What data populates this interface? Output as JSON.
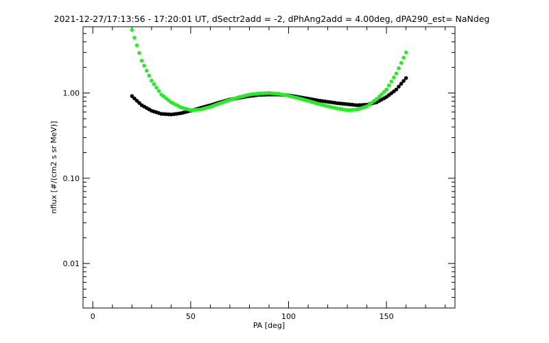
{
  "chart_data": {
    "type": "scatter",
    "title": "2021-12-27/17:13:56 - 17:20:01 UT, dSectr2add = -2, dPhAng2add = 4.00deg, dPA290_est=   NaNdeg",
    "xlabel": "PA [deg]",
    "ylabel": "nflux [#/(cm2 s sr MeV)]",
    "xlim": [
      -5,
      185
    ],
    "ylim": [
      0.003,
      6.0
    ],
    "yscale": "log",
    "grid": false,
    "x_ticks": [
      {
        "value": 0,
        "label": "0"
      },
      {
        "value": 50,
        "label": "50"
      },
      {
        "value": 100,
        "label": "100"
      },
      {
        "value": 150,
        "label": "150"
      }
    ],
    "y_ticks": [
      {
        "value": 0.01,
        "label": "0.01"
      },
      {
        "value": 0.1,
        "label": "0.10"
      },
      {
        "value": 1.0,
        "label": "1.00"
      }
    ],
    "series": [
      {
        "color": "#000000",
        "x": [
          20,
          25,
          30,
          35,
          40,
          45,
          50,
          55,
          60,
          65,
          70,
          75,
          80,
          85,
          90,
          95,
          100,
          105,
          110,
          115,
          120,
          125,
          130,
          135,
          140,
          145,
          150,
          155,
          160
        ],
        "y": [
          0.92,
          0.72,
          0.62,
          0.57,
          0.56,
          0.58,
          0.62,
          0.67,
          0.72,
          0.78,
          0.84,
          0.88,
          0.92,
          0.95,
          0.96,
          0.96,
          0.94,
          0.9,
          0.86,
          0.82,
          0.79,
          0.76,
          0.74,
          0.72,
          0.73,
          0.78,
          0.9,
          1.1,
          1.5
        ]
      },
      {
        "color": "#22ee22",
        "x": [
          20,
          25,
          30,
          35,
          40,
          45,
          50,
          55,
          60,
          65,
          70,
          75,
          80,
          85,
          90,
          95,
          100,
          105,
          110,
          115,
          120,
          125,
          130,
          135,
          140,
          145,
          150,
          155,
          160
        ],
        "y": [
          5.5,
          2.4,
          1.4,
          0.96,
          0.78,
          0.68,
          0.63,
          0.64,
          0.69,
          0.76,
          0.83,
          0.9,
          0.96,
          0.99,
          1.0,
          0.98,
          0.93,
          0.87,
          0.81,
          0.75,
          0.7,
          0.66,
          0.63,
          0.64,
          0.7,
          0.85,
          1.1,
          1.7,
          3.0
        ]
      }
    ]
  }
}
